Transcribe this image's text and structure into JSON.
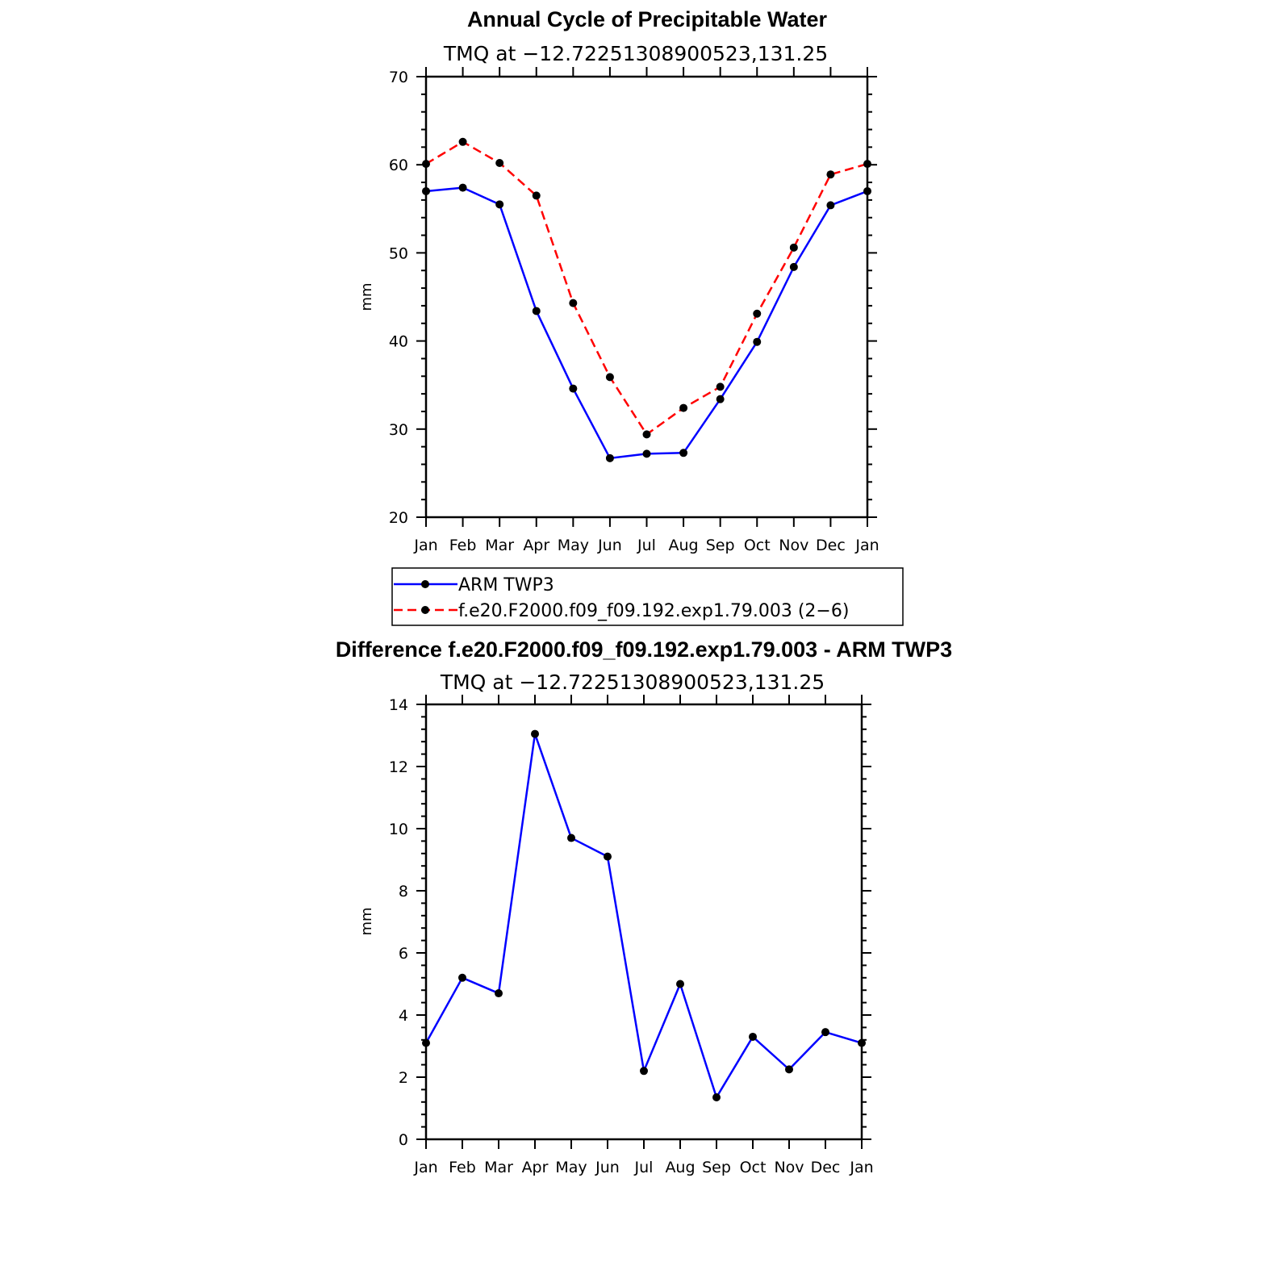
{
  "chart_data": [
    {
      "type": "line",
      "title": "Annual Cycle of Precipitable Water",
      "subtitle": "TMQ at −12.72251308900523,131.25",
      "xlabel": "",
      "ylabel": "mm",
      "categories": [
        "Jan",
        "Feb",
        "Mar",
        "Apr",
        "May",
        "Jun",
        "Jul",
        "Aug",
        "Sep",
        "Oct",
        "Nov",
        "Dec",
        "Jan"
      ],
      "ylim": [
        20,
        70
      ],
      "yticks": [
        20,
        30,
        40,
        50,
        60,
        70
      ],
      "grid": false,
      "legend_position": "bottom",
      "series": [
        {
          "name": "ARM TWP3",
          "color": "#0000ff",
          "style": "solid",
          "marker": "dot",
          "values": [
            57.0,
            57.4,
            55.5,
            43.4,
            34.6,
            26.7,
            27.2,
            27.3,
            33.4,
            39.9,
            48.4,
            55.4,
            57.0
          ]
        },
        {
          "name": "f.e20.F2000.f09_f09.192.exp1.79.003 (2−6)",
          "color": "#ff0000",
          "style": "dashed",
          "marker": "dot",
          "values": [
            60.1,
            62.6,
            60.2,
            56.5,
            44.3,
            35.9,
            29.4,
            32.4,
            34.8,
            43.1,
            50.6,
            58.9,
            60.1
          ]
        }
      ]
    },
    {
      "type": "line",
      "title": "Difference f.e20.F2000.f09_f09.192.exp1.79.003 - ARM TWP3",
      "subtitle": "TMQ at −12.72251308900523,131.25",
      "xlabel": "",
      "ylabel": "mm",
      "categories": [
        "Jan",
        "Feb",
        "Mar",
        "Apr",
        "May",
        "Jun",
        "Jul",
        "Aug",
        "Sep",
        "Oct",
        "Nov",
        "Dec",
        "Jan"
      ],
      "ylim": [
        0,
        14
      ],
      "yticks": [
        0,
        2,
        4,
        6,
        8,
        10,
        12,
        14
      ],
      "grid": false,
      "series": [
        {
          "color": "#0000ff",
          "style": "solid",
          "marker": "dot",
          "values": [
            3.1,
            5.2,
            4.7,
            13.05,
            9.7,
            9.1,
            2.2,
            5.0,
            1.35,
            3.3,
            2.25,
            3.45,
            3.1
          ]
        }
      ]
    }
  ]
}
